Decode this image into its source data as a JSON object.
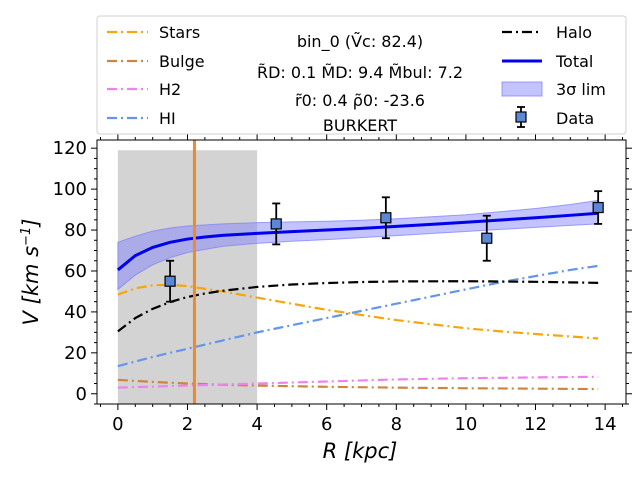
{
  "chart_data": {
    "type": "line",
    "xlabel_var": "R",
    "xlabel_unit": "[kpc]",
    "ylabel_var": "V",
    "ylabel_unit": "[km s",
    "ylabel_exp": "−1",
    "ylabel_close": "]",
    "xlim": [
      -0.6,
      14.6
    ],
    "ylim": [
      -5,
      124
    ],
    "x_ticks": [
      0,
      2,
      4,
      6,
      8,
      10,
      12,
      14
    ],
    "y_ticks": [
      0,
      20,
      40,
      60,
      80,
      100,
      120
    ],
    "x_minor_step": 0.5,
    "y_minor_step": 5,
    "shaded_region": {
      "x0": 0,
      "x1": 4,
      "y0": -5,
      "y1": 119,
      "color": "#d3d3d3"
    },
    "vertical_line": {
      "x": 2.2,
      "color": "#f0892a"
    },
    "series": [
      {
        "name": "Stars",
        "color": "#f5a60a",
        "style": "dashdot",
        "x": [
          0,
          0.5,
          1,
          1.5,
          2,
          3,
          4,
          5,
          6,
          7,
          8,
          9,
          10,
          11,
          12,
          13,
          13.8
        ],
        "y": [
          48.5,
          51.5,
          53,
          53.3,
          52.6,
          50,
          47,
          44,
          41,
          38.5,
          36,
          34,
          32,
          30.5,
          29.2,
          28,
          27
        ]
      },
      {
        "name": "Bulge",
        "color": "#cd853f",
        "style": "dashdot",
        "x": [
          0,
          1,
          2,
          3,
          4,
          6,
          8,
          10,
          12,
          13.8
        ],
        "y": [
          6.8,
          5.8,
          5,
          4.4,
          4,
          3.4,
          3,
          2.7,
          2.5,
          2.3
        ]
      },
      {
        "name": "H2",
        "color": "#ee82ee",
        "style": "dashdot",
        "x": [
          0,
          1,
          2,
          3,
          4,
          6,
          8,
          10,
          12,
          13.8
        ],
        "y": [
          3,
          3.5,
          4,
          4.5,
          5,
          6,
          7,
          7.6,
          8,
          8.3
        ]
      },
      {
        "name": "HI",
        "color": "#6495ed",
        "style": "dashdot",
        "x": [
          0,
          1,
          2,
          3,
          4,
          5,
          6,
          7,
          8,
          9,
          10,
          11,
          12,
          13,
          13.8
        ],
        "y": [
          13.5,
          18,
          22,
          26,
          30,
          33.5,
          37,
          40.5,
          44,
          47.5,
          51,
          54.5,
          57.5,
          60.5,
          62.5
        ]
      },
      {
        "name": "Halo",
        "color": "#000000",
        "style": "dashdot",
        "x": [
          0,
          0.5,
          1,
          1.5,
          2,
          2.5,
          3,
          4,
          5,
          6,
          7,
          8,
          10,
          12,
          13.8
        ],
        "y": [
          30.5,
          37,
          41.5,
          44.8,
          47.3,
          49,
          50.3,
          52.2,
          53.4,
          54.1,
          54.6,
          54.9,
          55,
          54.7,
          54.2
        ]
      },
      {
        "name": "Total",
        "color": "#0000ee",
        "style": "solid",
        "x": [
          0,
          0.5,
          1,
          1.5,
          2,
          2.5,
          3,
          4,
          5,
          6,
          7,
          8,
          9,
          10,
          11,
          12,
          13,
          13.8
        ],
        "y": [
          60.5,
          67.5,
          71.5,
          74,
          75.6,
          76.6,
          77.4,
          78.4,
          79.2,
          80,
          80.8,
          81.8,
          82.8,
          83.8,
          84.9,
          86,
          87.2,
          88.2
        ]
      }
    ],
    "band": {
      "name": "3σ lim",
      "color": "#7b7bff",
      "x": [
        0,
        0.5,
        1,
        1.5,
        2,
        3,
        4,
        5,
        6,
        7,
        8,
        9,
        10,
        11,
        12,
        13,
        13.8
      ],
      "upper": [
        74,
        77,
        79.5,
        81,
        82,
        83,
        83.6,
        84,
        84.3,
        84.8,
        85.5,
        86.5,
        87.5,
        89,
        90.5,
        92.5,
        94.5
      ],
      "lower": [
        51,
        58,
        63,
        66.5,
        69,
        72,
        73.5,
        74.5,
        75.3,
        76.3,
        77.3,
        78.3,
        79.3,
        80.3,
        81.3,
        82.3,
        83
      ]
    },
    "data_points": {
      "name": "Data",
      "color": "#5b87d6",
      "x": [
        1.5,
        4.55,
        7.7,
        10.6,
        13.8
      ],
      "y": [
        55,
        83,
        86,
        76,
        91
      ],
      "err": [
        10,
        10,
        10,
        11,
        8
      ]
    },
    "info": {
      "line1": "bin_0 (Ṽc: 82.4)",
      "line2": "R̃D: 0.1  M̃D: 9.4 M̃bul: 7.2",
      "line3": "r̃0: 0.4   ρ̃0: -23.6",
      "line4": "BURKERT"
    },
    "legend": {
      "placement": "top-outside",
      "left": [
        "Stars",
        "Bulge",
        "H2",
        "HI"
      ],
      "right": [
        "Halo",
        "Total",
        "3σ lim",
        "Data"
      ]
    }
  }
}
